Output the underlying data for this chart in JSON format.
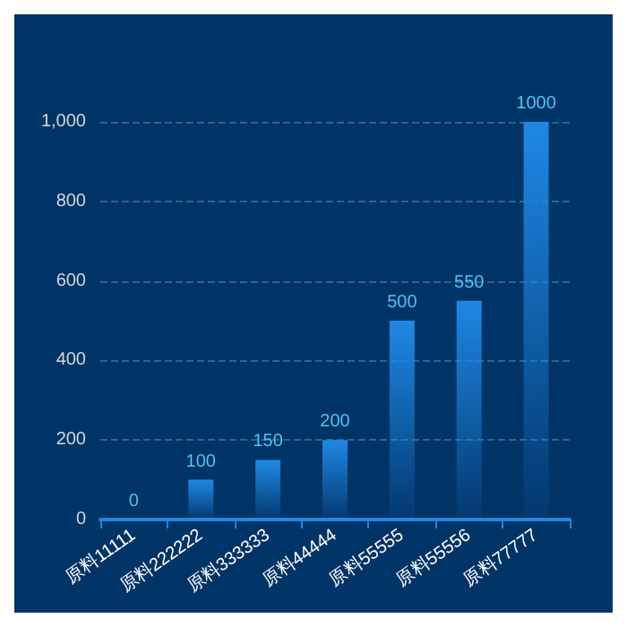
{
  "chart_data": {
    "type": "bar",
    "categories": [
      "原料11111",
      "原料222222",
      "原料333333",
      "原料44444",
      "原料55555",
      "原料55556",
      "原料77777"
    ],
    "values": [
      0,
      100,
      150,
      200,
      500,
      550,
      1000
    ],
    "color": "#1e88e5",
    "data_labels": true,
    "ylim": [
      0,
      1000
    ],
    "yticks": [
      0,
      200,
      400,
      600,
      800,
      {
        "value": 1000,
        "label": "1,000"
      }
    ],
    "grid": "y"
  }
}
